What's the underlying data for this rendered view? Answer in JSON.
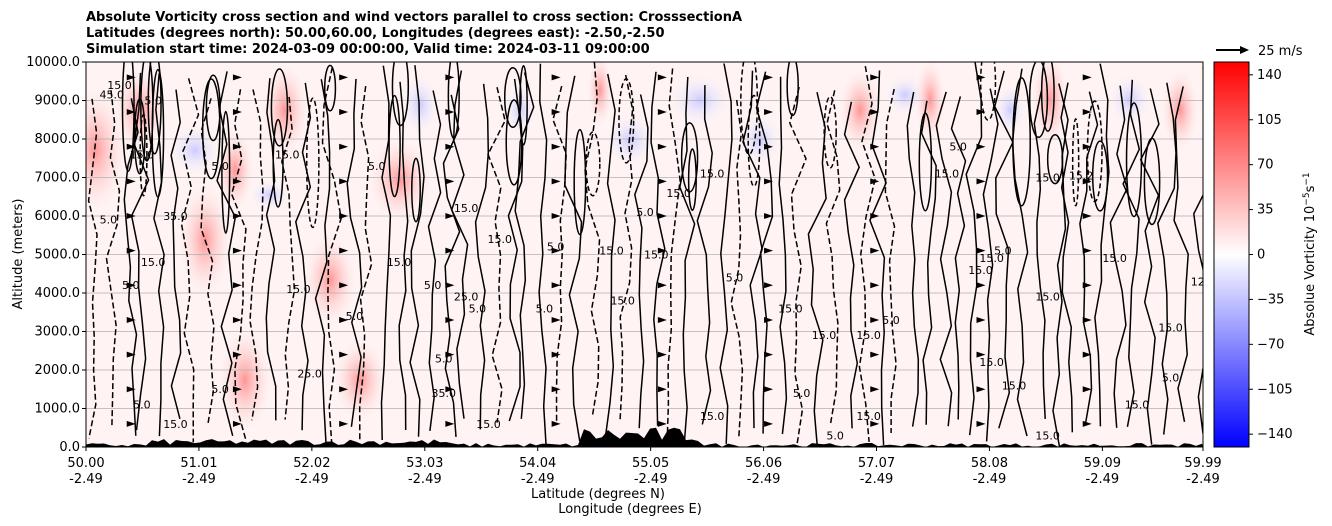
{
  "chart_data": {
    "type": "heatmap",
    "title_lines": [
      "Absolute Vorticity cross section and wind vectors parallel to cross section: CrosssectionA",
      "Latitudes (degrees north): 50.00,60.00, Longitudes (degrees east): -2.50,-2.50",
      "Simulation start time: 2024-03-09 00:00:00, Valid time: 2024-03-11 09:00:00"
    ],
    "ylabel": "Altitude (meters)",
    "xlabel_lines": [
      "Latitude (degrees N)",
      "Longitude (degrees E)"
    ],
    "ylim": [
      0,
      10000
    ],
    "y_ticks": [
      "0.0",
      "1000.0",
      "2000.0",
      "3000.0",
      "4000.0",
      "5000.0",
      "6000.0",
      "7000.0",
      "8000.0",
      "9000.0",
      "10000.0"
    ],
    "xlim": [
      50.0,
      59.99
    ],
    "x_ticks": [
      {
        "lat": "50.00",
        "lon": "-2.49"
      },
      {
        "lat": "51.01",
        "lon": "-2.49"
      },
      {
        "lat": "52.02",
        "lon": "-2.49"
      },
      {
        "lat": "53.03",
        "lon": "-2.49"
      },
      {
        "lat": "54.04",
        "lon": "-2.49"
      },
      {
        "lat": "55.05",
        "lon": "-2.49"
      },
      {
        "lat": "56.06",
        "lon": "-2.49"
      },
      {
        "lat": "57.07",
        "lon": "-2.49"
      },
      {
        "lat": "58.08",
        "lon": "-2.49"
      },
      {
        "lat": "59.09",
        "lon": "-2.49"
      },
      {
        "lat": "59.99",
        "lon": "-2.49"
      }
    ],
    "colorbar": {
      "label": "Absolue Vorticity 10",
      "label_exp": "−5",
      "label_unit": "s",
      "label_unit_exp": "−1",
      "range": [
        -150,
        150
      ],
      "ticks": [
        "140",
        "105",
        "70",
        "35",
        "0",
        "−35",
        "−70",
        "−105",
        "−140"
      ],
      "tick_values": [
        140,
        105,
        70,
        35,
        0,
        -35,
        -70,
        -105,
        -140
      ],
      "colors": [
        "#0000ff",
        "#ffffff",
        "#ff0000"
      ]
    },
    "quiver_key": {
      "label": "25 m/s",
      "value": 25
    },
    "grid": true,
    "contour_labels": [
      {
        "t": "15.0",
        "lat": 50.3,
        "z": 9300
      },
      {
        "t": "45.0",
        "lat": 50.23,
        "z": 9050
      },
      {
        "t": "5.0",
        "lat": 50.6,
        "z": 8900
      },
      {
        "t": "15.0",
        "lat": 50.5,
        "z": 7500
      },
      {
        "t": "5.0",
        "lat": 51.2,
        "z": 7200
      },
      {
        "t": "15.0",
        "lat": 51.8,
        "z": 7500
      },
      {
        "t": "5.0",
        "lat": 52.6,
        "z": 7200
      },
      {
        "t": "35.0",
        "lat": 50.8,
        "z": 5900
      },
      {
        "t": "5.0",
        "lat": 50.2,
        "z": 5800
      },
      {
        "t": "15.0",
        "lat": 50.6,
        "z": 4700
      },
      {
        "t": "5.0",
        "lat": 50.4,
        "z": 4100
      },
      {
        "t": "15.0",
        "lat": 51.9,
        "z": 4000
      },
      {
        "t": "5.0",
        "lat": 52.4,
        "z": 3300
      },
      {
        "t": "15.0",
        "lat": 52.8,
        "z": 4700
      },
      {
        "t": "5.0",
        "lat": 53.1,
        "z": 4100
      },
      {
        "t": "15.0",
        "lat": 53.4,
        "z": 6100
      },
      {
        "t": "25.0",
        "lat": 53.4,
        "z": 3800
      },
      {
        "t": "5.0",
        "lat": 53.5,
        "z": 3500
      },
      {
        "t": "5.0",
        "lat": 53.2,
        "z": 2200
      },
      {
        "t": "15.0",
        "lat": 53.7,
        "z": 5300
      },
      {
        "t": "5.0",
        "lat": 54.2,
        "z": 5100
      },
      {
        "t": "15.0",
        "lat": 54.7,
        "z": 5000
      },
      {
        "t": "5.0",
        "lat": 54.1,
        "z": 3500
      },
      {
        "t": "15.0",
        "lat": 54.8,
        "z": 3700
      },
      {
        "t": "5.0",
        "lat": 55.0,
        "z": 6000
      },
      {
        "t": "15.0",
        "lat": 55.3,
        "z": 6500
      },
      {
        "t": "15.0",
        "lat": 55.6,
        "z": 7000
      },
      {
        "t": "15.0",
        "lat": 55.1,
        "z": 4900
      },
      {
        "t": "5.0",
        "lat": 55.8,
        "z": 4300
      },
      {
        "t": "15.0",
        "lat": 56.3,
        "z": 3500
      },
      {
        "t": "15.0",
        "lat": 56.6,
        "z": 2800
      },
      {
        "t": "5.0",
        "lat": 56.4,
        "z": 1300
      },
      {
        "t": "15.0",
        "lat": 57.0,
        "z": 2800
      },
      {
        "t": "5.0",
        "lat": 57.2,
        "z": 3200
      },
      {
        "t": "15.0",
        "lat": 57.7,
        "z": 7000
      },
      {
        "t": "5.0",
        "lat": 57.8,
        "z": 7700
      },
      {
        "t": "15.0",
        "lat": 58.6,
        "z": 6900
      },
      {
        "t": "15.2",
        "lat": 58.9,
        "z": 6950
      },
      {
        "t": "15.0",
        "lat": 58.1,
        "z": 4800
      },
      {
        "t": "15.0",
        "lat": 58.0,
        "z": 4500
      },
      {
        "t": "5.0",
        "lat": 58.2,
        "z": 5000
      },
      {
        "t": "15.0",
        "lat": 58.6,
        "z": 3800
      },
      {
        "t": "15.0",
        "lat": 59.2,
        "z": 4800
      },
      {
        "t": "15.0",
        "lat": 59.7,
        "z": 3000
      },
      {
        "t": "15.0",
        "lat": 58.1,
        "z": 2100
      },
      {
        "t": "15.0",
        "lat": 58.3,
        "z": 1500
      },
      {
        "t": "5.0",
        "lat": 59.7,
        "z": 1700
      },
      {
        "t": "15.0",
        "lat": 59.4,
        "z": 1000
      },
      {
        "t": "15.0",
        "lat": 57.0,
        "z": 700
      },
      {
        "t": "5.0",
        "lat": 56.7,
        "z": 200
      },
      {
        "t": "15.0",
        "lat": 58.6,
        "z": 200
      },
      {
        "t": "5.0",
        "lat": 51.2,
        "z": 1400
      },
      {
        "t": "25.0",
        "lat": 52.0,
        "z": 1800
      },
      {
        "t": "35.0",
        "lat": 53.2,
        "z": 1300
      },
      {
        "t": "15.0",
        "lat": 53.6,
        "z": 500
      },
      {
        "t": "15.0",
        "lat": 55.6,
        "z": 700
      },
      {
        "t": "5.0",
        "lat": 50.5,
        "z": 1000
      },
      {
        "t": "15.0",
        "lat": 50.8,
        "z": 500
      },
      {
        "t": "12.5",
        "lat": 59.99,
        "z": 4200
      }
    ]
  }
}
